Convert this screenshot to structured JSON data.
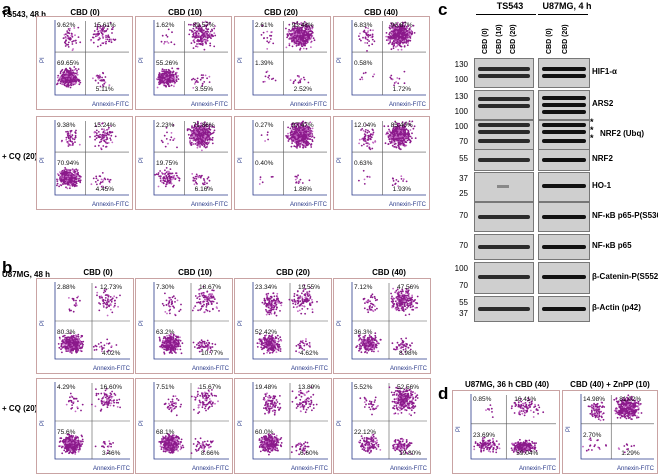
{
  "panel_labels": {
    "a": "a",
    "b": "b",
    "c": "c",
    "d": "d"
  },
  "axis": {
    "x": "Annexin-FITC",
    "y": "PI"
  },
  "colors": {
    "dots": "#8b1a8b",
    "dots_light": "#c46ac4",
    "frame": "#c9a3a3",
    "axes": "#2a3a8a"
  },
  "panel_a": {
    "row_labels": [
      "TS543, 48 h",
      "+ CQ (20)"
    ],
    "titles": [
      "CBD (0)",
      "CBD (10)",
      "CBD (20)",
      "CBD (40)"
    ],
    "plots": [
      [
        {
          "ul": "9.62%",
          "ur": "15.61%",
          "ll": "69.65%",
          "lr": "5.11%"
        },
        {
          "ul": "1.62%",
          "ur": "39.57%",
          "ll": "55.26%",
          "lr": "3.55%"
        },
        {
          "ul": "2.61%",
          "ur": "93.48%",
          "ll": "1.39%",
          "lr": "2.52%"
        },
        {
          "ul": "6.83%",
          "ur": "90.87%",
          "ll": "0.58%",
          "lr": "1.72%"
        }
      ],
      [
        {
          "ul": "9.38%",
          "ur": "15.24%",
          "ll": "70.94%",
          "lr": "4.45%"
        },
        {
          "ul": "2.23%",
          "ur": "71.86%",
          "ll": "19.75%",
          "lr": "6.16%"
        },
        {
          "ul": "0.27%",
          "ur": "97.47%",
          "ll": "0.40%",
          "lr": "1.86%"
        },
        {
          "ul": "12.04%",
          "ur": "85.40%",
          "ll": "0.63%",
          "lr": "1.93%"
        }
      ]
    ]
  },
  "panel_b": {
    "row_labels": [
      "U87MG, 48 h",
      "+ CQ (20)"
    ],
    "titles": [
      "CBD (0)",
      "CBD (10)",
      "CBD (20)",
      "CBD (40)"
    ],
    "plots": [
      [
        {
          "ul": "2.88%",
          "ur": "12.73%",
          "ll": "80.3%",
          "lr": "4.02%"
        },
        {
          "ul": "7.30%",
          "ur": "18.67%",
          "ll": "63.2%",
          "lr": "10.77%"
        },
        {
          "ul": "23.34%",
          "ur": "19.55%",
          "ll": "52.42%",
          "lr": "4.62%"
        },
        {
          "ul": "7.12%",
          "ur": "47.56%",
          "ll": "36.3%",
          "lr": "8.98%"
        }
      ],
      [
        {
          "ul": "4.29%",
          "ur": "16.60%",
          "ll": "75.6%",
          "lr": "3.46%"
        },
        {
          "ul": "7.51%",
          "ur": "15.67%",
          "ll": "68.1%",
          "lr": "8.66%"
        },
        {
          "ul": "19.48%",
          "ur": "13.89%",
          "ll": "60.0%",
          "lr": "6.60%"
        },
        {
          "ul": "5.52%",
          "ur": "52.56%",
          "ll": "22.12%",
          "lr": "19.80%"
        }
      ]
    ]
  },
  "panel_c": {
    "group_left": "TS543",
    "group_right": "U87MG, 4 h",
    "lanes_left": [
      "CBD (0)",
      "CBD (10)",
      "CBD (20)"
    ],
    "lanes_right": [
      "CBD (0)",
      "CBD (20)"
    ],
    "blots": [
      {
        "name": "HIF1-α",
        "mw": [
          "130",
          "100"
        ]
      },
      {
        "name": "ARS2",
        "mw": [
          "130",
          "100"
        ]
      },
      {
        "name": "NRF2 (Ubq)",
        "mw": [
          "100",
          "70"
        ],
        "stars": "*\n*\n*"
      },
      {
        "name": "NRF2",
        "mw": [
          "55"
        ]
      },
      {
        "name": "HO-1",
        "mw": [
          "37",
          "25"
        ]
      },
      {
        "name": "NF-κB p65-P(S536)",
        "mw": [
          "70"
        ]
      },
      {
        "name": "NF-κB p65",
        "mw": [
          "70"
        ]
      },
      {
        "name": "β-Catenin-P(S552)",
        "mw": [
          "100",
          "70"
        ]
      },
      {
        "name": "β-Actin (p42)",
        "mw": [
          "55",
          "37"
        ]
      }
    ]
  },
  "panel_d": {
    "titles": [
      "U87MG, 36 h CBD (40)",
      "CBD (40) + ZnPP (10)"
    ],
    "plots": [
      {
        "ul": "0.85%",
        "ur": "16.41%",
        "ll": "23.69%",
        "lr": "59.04%"
      },
      {
        "ul": "14.98%",
        "ur": "81.02%",
        "ll": "2.70%",
        "lr": "1.29%"
      }
    ]
  }
}
